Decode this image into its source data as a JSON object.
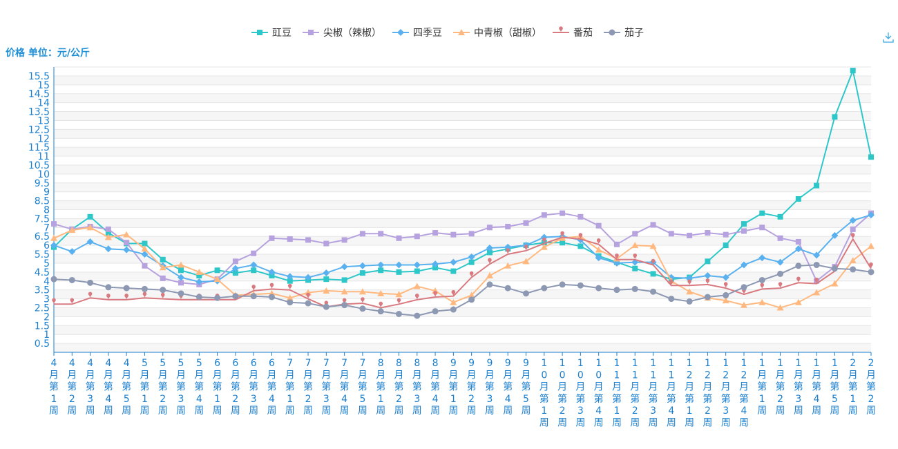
{
  "chart_data": {
    "type": "line",
    "title": "",
    "ylabel": "价格 单位：元/公斤",
    "ylim": [
      0,
      16
    ],
    "yticks": [
      0.5,
      1,
      1.5,
      2,
      2.5,
      3,
      3.5,
      4,
      4.5,
      5,
      5.5,
      6,
      6.5,
      7,
      7.5,
      8,
      8.5,
      9,
      9.5,
      10,
      10.5,
      11,
      11.5,
      12,
      12.5,
      13,
      13.5,
      14,
      14.5,
      15,
      15.5
    ],
    "grid": true,
    "legend_position": "top-center",
    "categories": [
      "4月第1周",
      "4月第2周",
      "4月第3周",
      "4月第4周",
      "4月第5周",
      "5月第1周",
      "5月第2周",
      "5月第3周",
      "5月第4周",
      "6月第1周",
      "6月第2周",
      "6月第3周",
      "6月第4周",
      "7月第1周",
      "7月第2周",
      "7月第3周",
      "7月第4周",
      "7月第5周",
      "8月第1周",
      "8月第2周",
      "8月第3周",
      "8月第4周",
      "9月第1周",
      "9月第2周",
      "9月第3周",
      "9月第4周",
      "9月第5周",
      "10月第1周",
      "10月第2周",
      "10月第3周",
      "10月第4周",
      "11月第1周",
      "11月第2周",
      "11月第3周",
      "11月第4周",
      "12月第1周",
      "12月第2周",
      "12月第3周",
      "12月第4周",
      "1月第1周",
      "1月第2周",
      "1月第3周",
      "1月第4周",
      "1月第5周",
      "2月第1周",
      "2月第2周"
    ],
    "series": [
      {
        "name": "豇豆",
        "color": "#2ec7c9",
        "marker": "square",
        "values": [
          5.9,
          6.9,
          7.6,
          6.7,
          6.1,
          6.1,
          5.2,
          4.6,
          4.3,
          4.6,
          4.45,
          4.6,
          4.3,
          4.0,
          4.05,
          4.1,
          4.05,
          4.45,
          4.6,
          4.5,
          4.55,
          4.75,
          4.55,
          5.05,
          5.6,
          5.8,
          6.0,
          6.15,
          6.15,
          5.95,
          5.4,
          5.05,
          4.7,
          4.4,
          4.1,
          4.2,
          5.1,
          6.0,
          7.2,
          7.8,
          7.6,
          8.6,
          9.35,
          13.2,
          15.8,
          10.95
        ]
      },
      {
        "name": "尖椒（辣椒）",
        "color": "#b6a2de",
        "marker": "square",
        "values": [
          7.2,
          6.9,
          7.05,
          6.9,
          6.15,
          4.85,
          4.15,
          3.9,
          3.8,
          4.1,
          5.1,
          5.55,
          6.4,
          6.35,
          6.3,
          6.1,
          6.3,
          6.65,
          6.65,
          6.4,
          6.5,
          6.7,
          6.6,
          6.65,
          7.0,
          7.05,
          7.25,
          7.7,
          7.8,
          7.6,
          7.1,
          6.05,
          6.65,
          7.15,
          6.65,
          6.55,
          6.7,
          6.6,
          6.8,
          7.0,
          6.4,
          6.2,
          4.0,
          4.8,
          6.9,
          7.8
        ]
      },
      {
        "name": "四季豆",
        "color": "#5ab1ef",
        "marker": "diamond",
        "values": [
          6.0,
          5.65,
          6.2,
          5.8,
          5.75,
          5.5,
          4.85,
          4.2,
          3.95,
          4.0,
          4.7,
          4.9,
          4.5,
          4.25,
          4.2,
          4.45,
          4.8,
          4.85,
          4.9,
          4.9,
          4.9,
          4.95,
          5.05,
          5.35,
          5.85,
          5.9,
          6.0,
          6.45,
          6.5,
          6.3,
          5.3,
          5.0,
          5.05,
          5.05,
          4.2,
          4.15,
          4.3,
          4.2,
          4.9,
          5.3,
          5.05,
          5.8,
          5.45,
          6.55,
          7.4,
          7.7
        ]
      },
      {
        "name": "中青椒（甜椒）",
        "color": "#ffb980",
        "marker": "triangle",
        "values": [
          6.4,
          6.85,
          7.0,
          6.45,
          6.6,
          5.8,
          4.75,
          4.9,
          4.5,
          4.1,
          3.2,
          3.25,
          3.3,
          3.05,
          3.35,
          3.45,
          3.4,
          3.4,
          3.3,
          3.25,
          3.7,
          3.45,
          2.8,
          3.2,
          4.3,
          4.85,
          5.1,
          5.9,
          6.4,
          6.5,
          5.75,
          5.25,
          6.0,
          5.95,
          4.0,
          3.4,
          3.05,
          2.9,
          2.65,
          2.8,
          2.5,
          2.8,
          3.35,
          3.85,
          5.15,
          5.95
        ]
      },
      {
        "name": "番茄",
        "color": "#d87a80",
        "marker": "pin",
        "values": [
          2.7,
          2.7,
          3.05,
          2.95,
          2.95,
          3.05,
          3.0,
          2.95,
          2.95,
          2.95,
          2.95,
          3.45,
          3.55,
          3.5,
          3.0,
          2.55,
          2.7,
          2.75,
          2.5,
          2.7,
          2.95,
          3.1,
          3.15,
          4.2,
          4.95,
          5.5,
          5.7,
          6.1,
          6.45,
          6.35,
          6.05,
          5.2,
          5.2,
          4.9,
          3.75,
          3.75,
          3.8,
          3.6,
          3.25,
          3.55,
          3.6,
          3.9,
          3.85,
          4.55,
          6.35,
          4.7
        ]
      },
      {
        "name": "茄子",
        "color": "#8d98b3",
        "marker": "circle",
        "values": [
          4.1,
          4.05,
          3.9,
          3.65,
          3.6,
          3.55,
          3.5,
          3.3,
          3.1,
          3.05,
          3.15,
          3.15,
          3.1,
          2.8,
          2.75,
          2.55,
          2.65,
          2.45,
          2.3,
          2.15,
          2.05,
          2.3,
          2.4,
          2.95,
          3.8,
          3.6,
          3.3,
          3.6,
          3.8,
          3.75,
          3.6,
          3.5,
          3.55,
          3.4,
          3.0,
          2.85,
          3.1,
          3.2,
          3.65,
          4.05,
          4.4,
          4.85,
          4.9,
          4.7,
          4.65,
          4.5
        ]
      }
    ]
  },
  "toolbar": {
    "download_icon": "download-icon"
  }
}
